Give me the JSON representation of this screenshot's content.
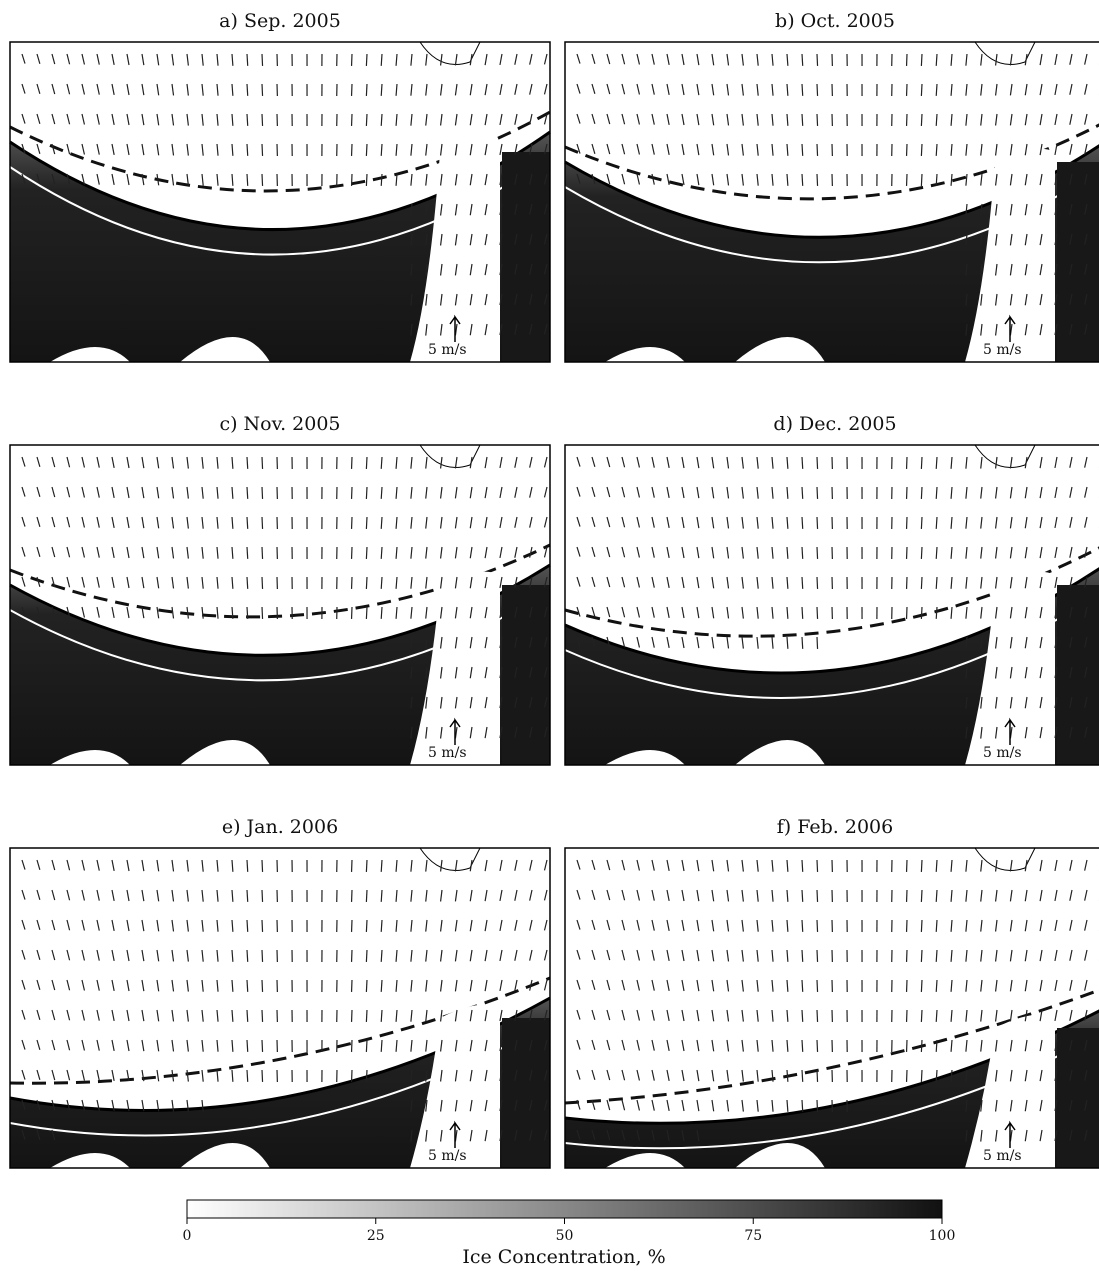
{
  "panels": [
    {
      "title": "a) Sep. 2005",
      "scale_label": "5 m/s"
    },
    {
      "title": "b) Oct. 2005",
      "scale_label": "5 m/s"
    },
    {
      "title": "c) Nov. 2005",
      "scale_label": "5 m/s"
    },
    {
      "title": "d) Dec. 2005",
      "scale_label": "5 m/s"
    },
    {
      "title": "e) Jan. 2006",
      "scale_label": "5 m/s"
    },
    {
      "title": "f) Feb. 2006",
      "scale_label": "5 m/s"
    }
  ],
  "colorbar": {
    "label": "Ice Concentration, %",
    "range": [
      0,
      100
    ],
    "ticks": [
      0,
      25,
      50,
      75,
      100
    ]
  }
}
